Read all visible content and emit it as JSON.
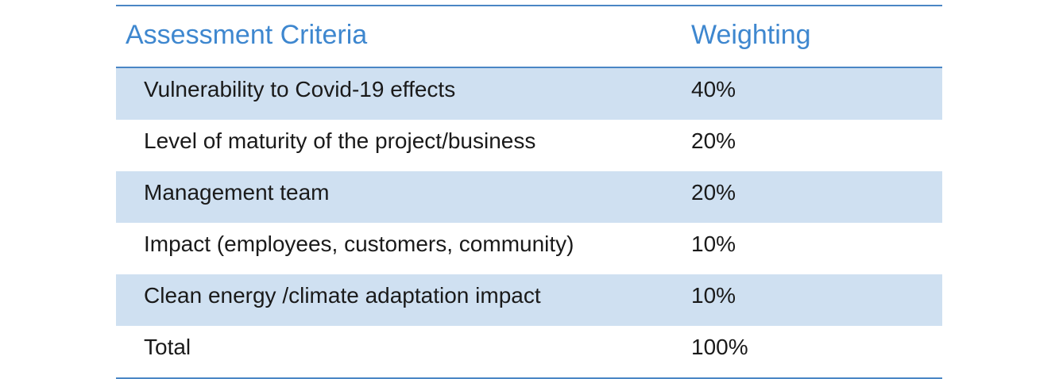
{
  "header": {
    "criteria": "Assessment Criteria",
    "weighting": "Weighting"
  },
  "rows": [
    {
      "criteria": "Vulnerability to Covid-19 effects",
      "weighting": "40%"
    },
    {
      "criteria": "Level of maturity of the project/business",
      "weighting": "20%"
    },
    {
      "criteria": "Management team",
      "weighting": "20%"
    },
    {
      "criteria": "Impact (employees, customers, community)",
      "weighting": "10%"
    },
    {
      "criteria": "Clean energy /climate adaptation impact",
      "weighting": "10%"
    },
    {
      "criteria": "Total",
      "weighting": "100%"
    }
  ],
  "colors": {
    "header_text": "#3e87cf",
    "rule": "#4a86c5",
    "shaded_row": "#cfe0f1"
  }
}
